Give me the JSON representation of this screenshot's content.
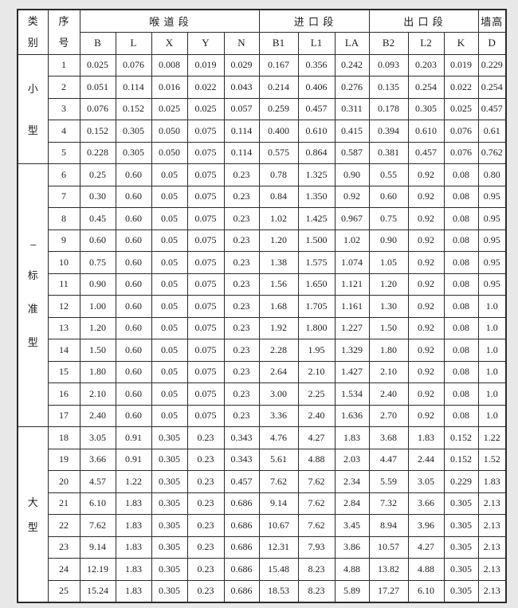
{
  "page": {
    "bg_color": "#e8e8e8",
    "cell_bg": "#ffffff",
    "border_color": "#2b2b2b",
    "text_color": "#1c1c1c"
  },
  "table": {
    "corner_headers": [
      {
        "id": "category",
        "label": "类别",
        "chars": [
          "类",
          "别"
        ]
      },
      {
        "id": "serial",
        "label": "序号",
        "chars": [
          "序",
          "号"
        ]
      }
    ],
    "column_groups": [
      {
        "id": "throat-section",
        "label": "喉 道 段",
        "columns": [
          "B",
          "L",
          "X",
          "Y",
          "N"
        ]
      },
      {
        "id": "inlet-section",
        "label": "进 口 段",
        "columns": [
          "B1",
          "L1",
          "LA"
        ]
      },
      {
        "id": "outlet-section",
        "label": "出 口 段",
        "columns": [
          "B2",
          "L2",
          "K"
        ]
      },
      {
        "id": "wall-height",
        "label": "墙高",
        "columns": [
          "D"
        ]
      }
    ],
    "column_ids": [
      "B",
      "L",
      "X",
      "Y",
      "N",
      "B1",
      "L1",
      "LA",
      "B2",
      "L2",
      "K",
      "D"
    ],
    "sections": [
      {
        "category_label": "小型",
        "category_chars": [
          "小",
          "型"
        ],
        "rows": [
          {
            "no": "1",
            "values": [
              "0.025",
              "0.076",
              "0.008",
              "0.019",
              "0.029",
              "0.167",
              "0.356",
              "0.242",
              "0.093",
              "0.203",
              "0.019",
              "0.229"
            ]
          },
          {
            "no": "2",
            "values": [
              "0.051",
              "0.114",
              "0.016",
              "0.022",
              "0.043",
              "0.214",
              "0.406",
              "0.276",
              "0.135",
              "0.254",
              "0.022",
              "0.254"
            ]
          },
          {
            "no": "3",
            "values": [
              "0.076",
              "0.152",
              "0.025",
              "0.025",
              "0.057",
              "0.259",
              "0.457",
              "0.311",
              "0.178",
              "0.305",
              "0.025",
              "0.457"
            ]
          },
          {
            "no": "4",
            "values": [
              "0.152",
              "0.305",
              "0.050",
              "0.075",
              "0.114",
              "0.400",
              "0.610",
              "0.415",
              "0.394",
              "0.610",
              "0.076",
              "0.61"
            ]
          },
          {
            "no": "5",
            "values": [
              "0.228",
              "0.305",
              "0.050",
              "0.075",
              "0.114",
              "0.575",
              "0.864",
              "0.587",
              "0.381",
              "0.457",
              "0.076",
              "0.762"
            ]
          }
        ]
      },
      {
        "category_label": "---标准型",
        "category_chars": [
          "---",
          "标",
          "准",
          "型"
        ],
        "rows": [
          {
            "no": "6",
            "values": [
              "0.25",
              "0.60",
              "0.05",
              "0.075",
              "0.23",
              "0.78",
              "1.325",
              "0.90",
              "0.55",
              "0.92",
              "0.08",
              "0.80"
            ]
          },
          {
            "no": "7",
            "values": [
              "0.30",
              "0.60",
              "0.05",
              "0.075",
              "0.23",
              "0.84",
              "1.350",
              "0.92",
              "0.60",
              "0.92",
              "0.08",
              "0.95"
            ]
          },
          {
            "no": "8",
            "values": [
              "0.45",
              "0.60",
              "0.05",
              "0.075",
              "0.23",
              "1.02",
              "1.425",
              "0.967",
              "0.75",
              "0.92",
              "0.08",
              "0.95"
            ]
          },
          {
            "no": "9",
            "values": [
              "0.60",
              "0.60",
              "0.05",
              "0.075",
              "0.23",
              "1.20",
              "1.500",
              "1.02",
              "0.90",
              "0.92",
              "0.08",
              "0.95"
            ]
          },
          {
            "no": "10",
            "values": [
              "0.75",
              "0.60",
              "0.05",
              "0.075",
              "0.23",
              "1.38",
              "1.575",
              "1.074",
              "1.05",
              "0.92",
              "0.08",
              "0.95"
            ]
          },
          {
            "no": "11",
            "values": [
              "0.90",
              "0.60",
              "0.05",
              "0.075",
              "0.23",
              "1.56",
              "1.650",
              "1.121",
              "1.20",
              "0.92",
              "0.08",
              "0.95"
            ]
          },
          {
            "no": "12",
            "values": [
              "1.00",
              "0.60",
              "0.05",
              "0.075",
              "0.23",
              "1.68",
              "1.705",
              "1.161",
              "1.30",
              "0.92",
              "0.08",
              "1.0"
            ]
          },
          {
            "no": "13",
            "values": [
              "1.20",
              "0.60",
              "0.05",
              "0.075",
              "0.23",
              "1.92",
              "1.800",
              "1.227",
              "1.50",
              "0.92",
              "0.08",
              "1.0"
            ]
          },
          {
            "no": "14",
            "values": [
              "1.50",
              "0.60",
              "0.05",
              "0.075",
              "0.23",
              "2.28",
              "1.95",
              "1.329",
              "1.80",
              "0.92",
              "0.08",
              "1.0"
            ]
          },
          {
            "no": "15",
            "values": [
              "1.80",
              "0.60",
              "0.05",
              "0.075",
              "0.23",
              "2.64",
              "2.10",
              "1.427",
              "2.10",
              "0.92",
              "0.08",
              "1.0"
            ]
          },
          {
            "no": "16",
            "values": [
              "2.10",
              "0.60",
              "0.05",
              "0.075",
              "0.23",
              "3.00",
              "2.25",
              "1.534",
              "2.40",
              "0.92",
              "0.08",
              "1.0"
            ]
          },
          {
            "no": "17",
            "values": [
              "2.40",
              "0.60",
              "0.05",
              "0.075",
              "0.23",
              "3.36",
              "2.40",
              "1.636",
              "2.70",
              "0.92",
              "0.08",
              "1.0"
            ]
          }
        ]
      },
      {
        "category_label": "大型",
        "category_chars": [
          "大",
          "型"
        ],
        "rows": [
          {
            "no": "18",
            "values": [
              "3.05",
              "0.91",
              "0.305",
              "0.23",
              "0.343",
              "4.76",
              "4.27",
              "1.83",
              "3.68",
              "1.83",
              "0.152",
              "1.22"
            ]
          },
          {
            "no": "19",
            "values": [
              "3.66",
              "0.91",
              "0.305",
              "0.23",
              "0.343",
              "5.61",
              "4.88",
              "2.03",
              "4.47",
              "2.44",
              "0.152",
              "1.52"
            ]
          },
          {
            "no": "20",
            "values": [
              "4.57",
              "1.22",
              "0.305",
              "0.23",
              "0.457",
              "7.62",
              "7.62",
              "2.34",
              "5.59",
              "3.05",
              "0.229",
              "1.83"
            ]
          },
          {
            "no": "21",
            "values": [
              "6.10",
              "1.83",
              "0.305",
              "0.23",
              "0.686",
              "9.14",
              "7.62",
              "2.84",
              "7.32",
              "3.66",
              "0.305",
              "2.13"
            ]
          },
          {
            "no": "22",
            "values": [
              "7.62",
              "1.83",
              "0.305",
              "0.23",
              "0.686",
              "10.67",
              "7.62",
              "3.45",
              "8.94",
              "3.96",
              "0.305",
              "2.13"
            ]
          },
          {
            "no": "23",
            "values": [
              "9.14",
              "1.83",
              "0.305",
              "0.23",
              "0.686",
              "12.31",
              "7.93",
              "3.86",
              "10.57",
              "4.27",
              "0.305",
              "2.13"
            ]
          },
          {
            "no": "24",
            "values": [
              "12.19",
              "1.83",
              "0.305",
              "0.23",
              "0.686",
              "15.48",
              "8.23",
              "4.88",
              "13.82",
              "4.88",
              "0.305",
              "2.13"
            ]
          },
          {
            "no": "25",
            "values": [
              "15.24",
              "1.83",
              "0.305",
              "0.23",
              "0.686",
              "18.53",
              "8.23",
              "5.89",
              "17.27",
              "6.10",
              "0.305",
              "2.13"
            ]
          }
        ]
      }
    ]
  }
}
